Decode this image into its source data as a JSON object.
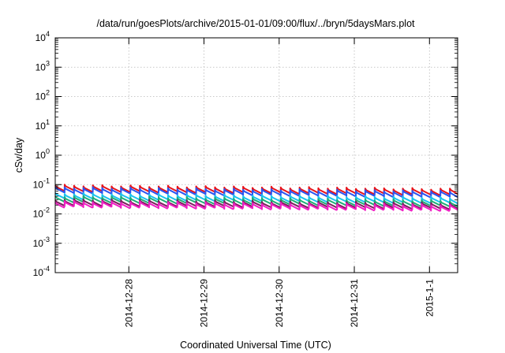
{
  "chart_data": {
    "type": "line",
    "title": "/data/run/goesPlots/archive/2015-01-01/09:00/flux/../bryn/5daysMars.plot",
    "xlabel": "Coordinated Universal Time (UTC)",
    "ylabel": "cSv/day",
    "y_scale": "log",
    "ylim": [
      0.0001,
      10000
    ],
    "y_ticks": [
      {
        "base": "10",
        "exp": "-4",
        "value": 0.0001
      },
      {
        "base": "10",
        "exp": "-3",
        "value": 0.001
      },
      {
        "base": "10",
        "exp": "-2",
        "value": 0.01
      },
      {
        "base": "10",
        "exp": "-1",
        "value": 0.1
      },
      {
        "base": "10",
        "exp": "0",
        "value": 1
      },
      {
        "base": "10",
        "exp": "1",
        "value": 10
      },
      {
        "base": "10",
        "exp": "2",
        "value": 100
      },
      {
        "base": "10",
        "exp": "3",
        "value": 1000
      },
      {
        "base": "10",
        "exp": "4",
        "value": 10000
      }
    ],
    "xlim": [
      "2014-12-27T00:30",
      "2015-01-01T09:00"
    ],
    "x_ticks": [
      {
        "label": "2014-12-28",
        "value": "2014-12-28T00:00"
      },
      {
        "label": "2014-12-29",
        "value": "2014-12-29T00:00"
      },
      {
        "label": "2014-12-30",
        "value": "2014-12-30T00:00"
      },
      {
        "label": "2014-12-31",
        "value": "2014-12-31T00:00"
      },
      {
        "label": "2015-1-1",
        "value": "2015-01-01T00:00"
      }
    ],
    "grid": true,
    "legend": "none",
    "sawtooth_period_hours": 3,
    "series": [
      {
        "color": "#e8141a",
        "start_peak": 0.095,
        "end_peak": 0.07,
        "trough_ratio": 0.65
      },
      {
        "color": "#2b54f0",
        "start_peak": 0.08,
        "end_peak": 0.058,
        "trough_ratio": 0.65
      },
      {
        "color": "#19c3ee",
        "start_peak": 0.05,
        "end_peak": 0.036,
        "trough_ratio": 0.66
      },
      {
        "color": "#1fae76",
        "start_peak": 0.04,
        "end_peak": 0.028,
        "trough_ratio": 0.66
      },
      {
        "color": "#7a1f5c",
        "start_peak": 0.031,
        "end_peak": 0.023,
        "trough_ratio": 0.66
      },
      {
        "color": "#f01fc4",
        "start_peak": 0.027,
        "end_peak": 0.02,
        "trough_ratio": 0.65
      }
    ]
  }
}
